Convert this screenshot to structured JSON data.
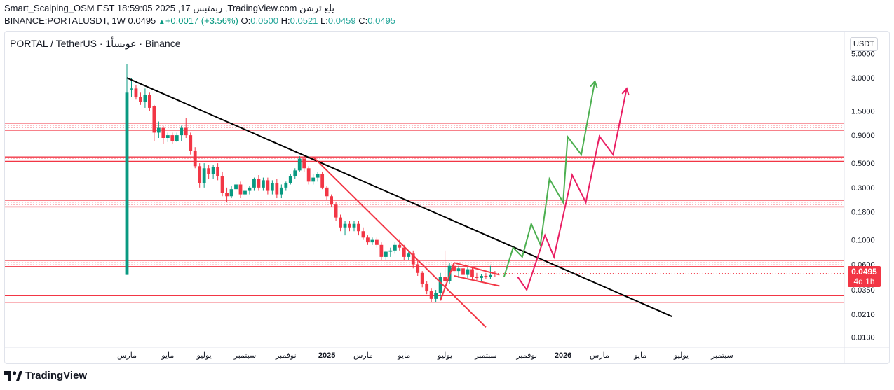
{
  "header": {
    "line1": "Smart_Scalping_OSM EST 18:59:05 2025 ,17 ربمتبس ,TradingView.com يلع ترشن",
    "symbol": "BINANCE:PORTALUSDT, 1W",
    "last": "0.0495",
    "change": "+0.0017 (+3.56%)",
    "o_label": "O:",
    "o_value": "0.0500",
    "h_label": "H:",
    "h_value": "0.0521",
    "l_label": "L:",
    "l_value": "0.0459",
    "c_label": "C:",
    "c_value": "0.0495"
  },
  "legend": "PORTAL / TetherUS · 1عوبسأ · Binance",
  "currency_button": "USDT",
  "price_tag": {
    "value": "0.0495",
    "countdown": "4d 1h"
  },
  "brand": "TradingView",
  "colors": {
    "up": "#089981",
    "down": "#f23645",
    "trendline": "#000000",
    "level": "#f23645",
    "projection_green": "#4caf50",
    "projection_pink": "#e91e63"
  },
  "chart_data": {
    "type": "candlestick",
    "title": "PORTAL / TetherUS · 1عوبسأ · Binance",
    "y_scale": "log",
    "ylim": [
      0.0105,
      6.0
    ],
    "y_ticks": [
      "5.0000",
      "3.0000",
      "1.5000",
      "0.9000",
      "0.5000",
      "0.3000",
      "0.1800",
      "0.1000",
      "0.0600",
      "0.0350",
      "0.0210",
      "0.0130"
    ],
    "x_ticks": [
      "مارس",
      "مايو",
      "يوليو",
      "سبتمبر",
      "نوفمبر",
      "2025",
      "مارس",
      "مايو",
      "يوليو",
      "سبتمبر",
      "نوفمبر",
      "2026",
      "مارس",
      "مايو",
      "يوليو",
      "سبتمبر"
    ],
    "x_tick_index": [
      0,
      9,
      17,
      26,
      35,
      44,
      52,
      61,
      70,
      79,
      88,
      96,
      104,
      113,
      122,
      131
    ],
    "candles": [
      {
        "o": 0.048,
        "h": 3.99,
        "l": 0.048,
        "c": 2.2
      },
      {
        "o": 2.35,
        "h": 3.0,
        "l": 2.0,
        "c": 2.4
      },
      {
        "o": 2.4,
        "h": 2.6,
        "l": 1.9,
        "c": 2.0
      },
      {
        "o": 2.0,
        "h": 2.2,
        "l": 1.7,
        "c": 1.8
      },
      {
        "o": 1.8,
        "h": 2.4,
        "l": 1.6,
        "c": 2.1
      },
      {
        "o": 2.1,
        "h": 2.2,
        "l": 1.5,
        "c": 1.6
      },
      {
        "o": 1.65,
        "h": 1.7,
        "l": 0.8,
        "c": 0.95
      },
      {
        "o": 0.95,
        "h": 1.2,
        "l": 0.85,
        "c": 1.05
      },
      {
        "o": 1.05,
        "h": 1.1,
        "l": 0.75,
        "c": 0.85
      },
      {
        "o": 0.85,
        "h": 0.95,
        "l": 0.78,
        "c": 0.9
      },
      {
        "o": 0.9,
        "h": 0.95,
        "l": 0.75,
        "c": 0.8
      },
      {
        "o": 0.8,
        "h": 0.95,
        "l": 0.78,
        "c": 0.9
      },
      {
        "o": 0.9,
        "h": 1.1,
        "l": 0.8,
        "c": 1.05
      },
      {
        "o": 1.05,
        "h": 1.3,
        "l": 0.85,
        "c": 0.9
      },
      {
        "o": 0.9,
        "h": 0.95,
        "l": 0.6,
        "c": 0.65
      },
      {
        "o": 0.65,
        "h": 0.7,
        "l": 0.45,
        "c": 0.47
      },
      {
        "o": 0.47,
        "h": 0.5,
        "l": 0.3,
        "c": 0.33
      },
      {
        "o": 0.33,
        "h": 0.5,
        "l": 0.3,
        "c": 0.45
      },
      {
        "o": 0.45,
        "h": 0.48,
        "l": 0.36,
        "c": 0.4
      },
      {
        "o": 0.4,
        "h": 0.48,
        "l": 0.36,
        "c": 0.46
      },
      {
        "o": 0.46,
        "h": 0.5,
        "l": 0.35,
        "c": 0.38
      },
      {
        "o": 0.38,
        "h": 0.42,
        "l": 0.25,
        "c": 0.27
      },
      {
        "o": 0.27,
        "h": 0.3,
        "l": 0.22,
        "c": 0.25
      },
      {
        "o": 0.25,
        "h": 0.31,
        "l": 0.24,
        "c": 0.29
      },
      {
        "o": 0.29,
        "h": 0.34,
        "l": 0.26,
        "c": 0.32
      },
      {
        "o": 0.32,
        "h": 0.34,
        "l": 0.24,
        "c": 0.26
      },
      {
        "o": 0.26,
        "h": 0.3,
        "l": 0.25,
        "c": 0.28
      },
      {
        "o": 0.28,
        "h": 0.31,
        "l": 0.26,
        "c": 0.3
      },
      {
        "o": 0.3,
        "h": 0.37,
        "l": 0.28,
        "c": 0.36
      },
      {
        "o": 0.36,
        "h": 0.39,
        "l": 0.28,
        "c": 0.3
      },
      {
        "o": 0.3,
        "h": 0.37,
        "l": 0.28,
        "c": 0.35
      },
      {
        "o": 0.35,
        "h": 0.37,
        "l": 0.26,
        "c": 0.28
      },
      {
        "o": 0.28,
        "h": 0.35,
        "l": 0.26,
        "c": 0.33
      },
      {
        "o": 0.33,
        "h": 0.36,
        "l": 0.24,
        "c": 0.26
      },
      {
        "o": 0.26,
        "h": 0.32,
        "l": 0.24,
        "c": 0.3
      },
      {
        "o": 0.3,
        "h": 0.34,
        "l": 0.28,
        "c": 0.33
      },
      {
        "o": 0.33,
        "h": 0.4,
        "l": 0.32,
        "c": 0.38
      },
      {
        "o": 0.38,
        "h": 0.45,
        "l": 0.36,
        "c": 0.43
      },
      {
        "o": 0.43,
        "h": 0.58,
        "l": 0.42,
        "c": 0.55
      },
      {
        "o": 0.55,
        "h": 0.58,
        "l": 0.42,
        "c": 0.45
      },
      {
        "o": 0.45,
        "h": 0.47,
        "l": 0.32,
        "c": 0.34
      },
      {
        "o": 0.34,
        "h": 0.4,
        "l": 0.32,
        "c": 0.37
      },
      {
        "o": 0.37,
        "h": 0.42,
        "l": 0.34,
        "c": 0.4
      },
      {
        "o": 0.4,
        "h": 0.42,
        "l": 0.29,
        "c": 0.3
      },
      {
        "o": 0.3,
        "h": 0.31,
        "l": 0.23,
        "c": 0.25
      },
      {
        "o": 0.25,
        "h": 0.26,
        "l": 0.2,
        "c": 0.21
      },
      {
        "o": 0.21,
        "h": 0.22,
        "l": 0.15,
        "c": 0.16
      },
      {
        "o": 0.16,
        "h": 0.17,
        "l": 0.12,
        "c": 0.13
      },
      {
        "o": 0.13,
        "h": 0.15,
        "l": 0.11,
        "c": 0.14
      },
      {
        "o": 0.14,
        "h": 0.15,
        "l": 0.12,
        "c": 0.13
      },
      {
        "o": 0.13,
        "h": 0.15,
        "l": 0.12,
        "c": 0.14
      },
      {
        "o": 0.14,
        "h": 0.15,
        "l": 0.11,
        "c": 0.12
      },
      {
        "o": 0.12,
        "h": 0.13,
        "l": 0.1,
        "c": 0.105
      },
      {
        "o": 0.105,
        "h": 0.11,
        "l": 0.09,
        "c": 0.095
      },
      {
        "o": 0.095,
        "h": 0.105,
        "l": 0.09,
        "c": 0.1
      },
      {
        "o": 0.1,
        "h": 0.105,
        "l": 0.085,
        "c": 0.09
      },
      {
        "o": 0.09,
        "h": 0.095,
        "l": 0.065,
        "c": 0.07
      },
      {
        "o": 0.07,
        "h": 0.08,
        "l": 0.065,
        "c": 0.078
      },
      {
        "o": 0.078,
        "h": 0.085,
        "l": 0.07,
        "c": 0.08
      },
      {
        "o": 0.08,
        "h": 0.095,
        "l": 0.075,
        "c": 0.09
      },
      {
        "o": 0.09,
        "h": 0.1,
        "l": 0.08,
        "c": 0.085
      },
      {
        "o": 0.085,
        "h": 0.09,
        "l": 0.065,
        "c": 0.07
      },
      {
        "o": 0.07,
        "h": 0.08,
        "l": 0.065,
        "c": 0.075
      },
      {
        "o": 0.075,
        "h": 0.08,
        "l": 0.055,
        "c": 0.06
      },
      {
        "o": 0.06,
        "h": 0.065,
        "l": 0.047,
        "c": 0.05
      },
      {
        "o": 0.05,
        "h": 0.052,
        "l": 0.037,
        "c": 0.04
      },
      {
        "o": 0.04,
        "h": 0.042,
        "l": 0.032,
        "c": 0.034
      },
      {
        "o": 0.034,
        "h": 0.036,
        "l": 0.027,
        "c": 0.029
      },
      {
        "o": 0.029,
        "h": 0.035,
        "l": 0.027,
        "c": 0.033
      },
      {
        "o": 0.033,
        "h": 0.05,
        "l": 0.028,
        "c": 0.046
      },
      {
        "o": 0.046,
        "h": 0.08,
        "l": 0.036,
        "c": 0.042
      },
      {
        "o": 0.042,
        "h": 0.062,
        "l": 0.04,
        "c": 0.058
      },
      {
        "o": 0.058,
        "h": 0.063,
        "l": 0.05,
        "c": 0.052
      },
      {
        "o": 0.052,
        "h": 0.058,
        "l": 0.045,
        "c": 0.055
      },
      {
        "o": 0.055,
        "h": 0.058,
        "l": 0.047,
        "c": 0.048
      },
      {
        "o": 0.048,
        "h": 0.057,
        "l": 0.045,
        "c": 0.054
      },
      {
        "o": 0.054,
        "h": 0.056,
        "l": 0.044,
        "c": 0.046
      },
      {
        "o": 0.046,
        "h": 0.05,
        "l": 0.043,
        "c": 0.045
      },
      {
        "o": 0.045,
        "h": 0.049,
        "l": 0.041,
        "c": 0.047
      },
      {
        "o": 0.047,
        "h": 0.05,
        "l": 0.044,
        "c": 0.046
      },
      {
        "o": 0.046,
        "h": 0.058,
        "l": 0.044,
        "c": 0.0478
      },
      {
        "o": 0.05,
        "h": 0.0521,
        "l": 0.0459,
        "c": 0.0495
      }
    ],
    "horizontal_levels": [
      1.16,
      1.0,
      0.57,
      0.52,
      0.23,
      0.2,
      0.065,
      0.057,
      0.031,
      0.027
    ],
    "trendline": {
      "from": {
        "i": 0,
        "price": 3.0
      },
      "to": {
        "i": 120,
        "price": 0.02
      }
    },
    "channel_lines": [
      {
        "from": {
          "i": 41,
          "price": 0.57
        },
        "to": {
          "i": 79,
          "price": 0.016
        }
      },
      {
        "from": {
          "i": 69,
          "price": 0.028
        },
        "to": {
          "i": 72,
          "price": 0.062
        }
      },
      {
        "from": {
          "i": 72,
          "price": 0.062
        },
        "to": {
          "i": 82,
          "price": 0.048
        }
      },
      {
        "from": {
          "i": 72,
          "price": 0.047
        },
        "to": {
          "i": 82,
          "price": 0.038
        }
      }
    ],
    "projection_green": [
      [
        83,
        0.046
      ],
      [
        85,
        0.085
      ],
      [
        87,
        0.07
      ],
      [
        89,
        0.14
      ],
      [
        91,
        0.09
      ],
      [
        93,
        0.36
      ],
      [
        96,
        0.22
      ],
      [
        97,
        0.87
      ],
      [
        100,
        0.6
      ],
      [
        103,
        2.8
      ]
    ],
    "projection_pink": [
      [
        86,
        0.046
      ],
      [
        88,
        0.035
      ],
      [
        92,
        0.11
      ],
      [
        94,
        0.07
      ],
      [
        98,
        0.39
      ],
      [
        101,
        0.22
      ],
      [
        104,
        0.88
      ],
      [
        107,
        0.6
      ],
      [
        110,
        2.4
      ]
    ]
  }
}
